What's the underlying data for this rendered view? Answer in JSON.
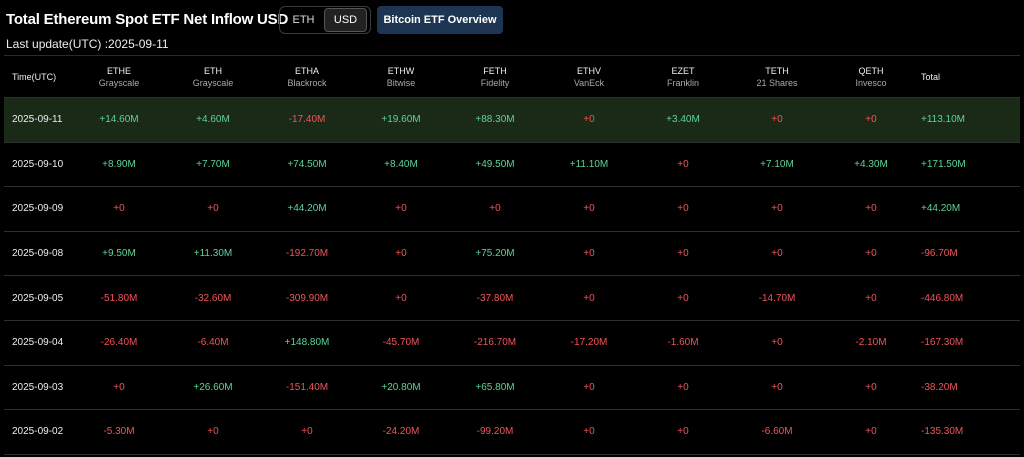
{
  "header": {
    "title": "Total Ethereum Spot ETF Net Inflow USD",
    "tabs": [
      "ETH",
      "USD"
    ],
    "button": "Bitcoin ETF Overview",
    "last_update": "Last update(UTC) :2025-09-11"
  },
  "table": {
    "columns": [
      {
        "ticker": "Time(UTC)"
      },
      {
        "ticker": "ETHE",
        "issuer": "Grayscale"
      },
      {
        "ticker": "ETH",
        "issuer": "Grayscale"
      },
      {
        "ticker": "ETHA",
        "issuer": "Blackrock"
      },
      {
        "ticker": "ETHW",
        "issuer": "Bitwise"
      },
      {
        "ticker": "FETH",
        "issuer": "Fidelity"
      },
      {
        "ticker": "ETHV",
        "issuer": "VanEck"
      },
      {
        "ticker": "EZET",
        "issuer": "Franklin"
      },
      {
        "ticker": "TETH",
        "issuer": "21 Shares"
      },
      {
        "ticker": "QETH",
        "issuer": "Invesco"
      },
      {
        "ticker": "Total"
      }
    ],
    "rows": [
      [
        "2025-09-11",
        "+14.60M",
        "+4.60M",
        "-17.40M",
        "+19.60M",
        "+88.30M",
        "+0",
        "+3.40M",
        "+0",
        "+0",
        "+113.10M"
      ],
      [
        "2025-09-10",
        "+8.90M",
        "+7.70M",
        "+74.50M",
        "+8.40M",
        "+49.50M",
        "+11.10M",
        "+0",
        "+7.10M",
        "+4.30M",
        "+171.50M"
      ],
      [
        "2025-09-09",
        "+0",
        "+0",
        "+44.20M",
        "+0",
        "+0",
        "+0",
        "+0",
        "+0",
        "+0",
        "+44.20M"
      ],
      [
        "2025-09-08",
        "+9.50M",
        "+11.30M",
        "-192.70M",
        "+0",
        "+75.20M",
        "+0",
        "+0",
        "+0",
        "+0",
        "-96.70M"
      ],
      [
        "2025-09-05",
        "-51.80M",
        "-32.60M",
        "-309.90M",
        "+0",
        "-37.80M",
        "+0",
        "+0",
        "-14.70M",
        "+0",
        "-446.80M"
      ],
      [
        "2025-09-04",
        "-26.40M",
        "-6.40M",
        "+148.80M",
        "-45.70M",
        "-216.70M",
        "-17.20M",
        "-1.60M",
        "+0",
        "-2.10M",
        "-167.30M"
      ],
      [
        "2025-09-03",
        "+0",
        "+26.60M",
        "-151.40M",
        "+20.80M",
        "+65.80M",
        "+0",
        "+0",
        "+0",
        "+0",
        "-38.20M"
      ],
      [
        "2025-09-02",
        "-5.30M",
        "+0",
        "+0",
        "-24.20M",
        "-99.20M",
        "+0",
        "+0",
        "-6.60M",
        "+0",
        "-135.30M"
      ]
    ]
  }
}
